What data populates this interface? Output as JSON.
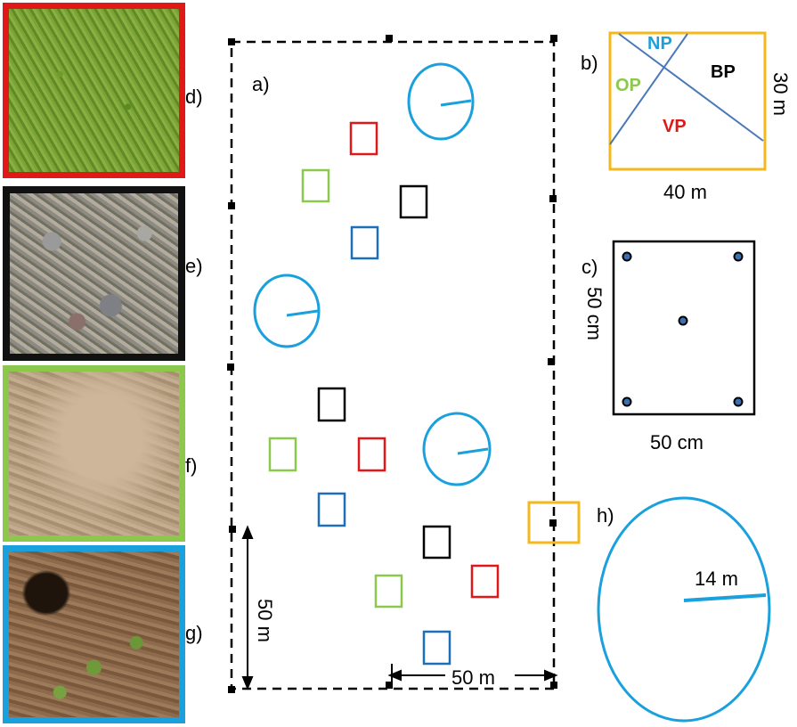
{
  "photos": [
    {
      "id": "d",
      "label": "d)",
      "frame_color": "#e01818",
      "surface": "grass"
    },
    {
      "id": "e",
      "label": "e)",
      "frame_color": "#111111",
      "surface": "gravel"
    },
    {
      "id": "f",
      "label": "f)",
      "frame_color": "#8cc84b",
      "surface": "bare-soil"
    },
    {
      "id": "g",
      "label": "g)",
      "frame_color": "#1aa0dd",
      "surface": "soil-with-burrow"
    }
  ],
  "panel_a": {
    "label": "a)",
    "dim_vertical": "50 m",
    "dim_horizontal": "50 m"
  },
  "panel_b": {
    "label": "b)",
    "width_label": "40 m",
    "height_label": "30 m",
    "zones": [
      {
        "name": "NP",
        "color": "#1aa0dd"
      },
      {
        "name": "BP",
        "color": "#000000"
      },
      {
        "name": "OP",
        "color": "#8cc84b"
      },
      {
        "name": "VP",
        "color": "#e01818"
      }
    ],
    "frame_color": "#f5b81c",
    "line_color": "#4a78b8"
  },
  "panel_c": {
    "label": "c)",
    "side_label": "50 cm",
    "bottom_label": "50 cm"
  },
  "panel_h": {
    "label": "h)",
    "radius_label": "14 m"
  },
  "colors": {
    "circle": "#1aa0dd",
    "red_plot": "#e01818",
    "green_plot": "#8cc84b",
    "blue_plot": "#1f6fb8",
    "black_plot": "#000000",
    "yellow_plot": "#f5b81c"
  }
}
